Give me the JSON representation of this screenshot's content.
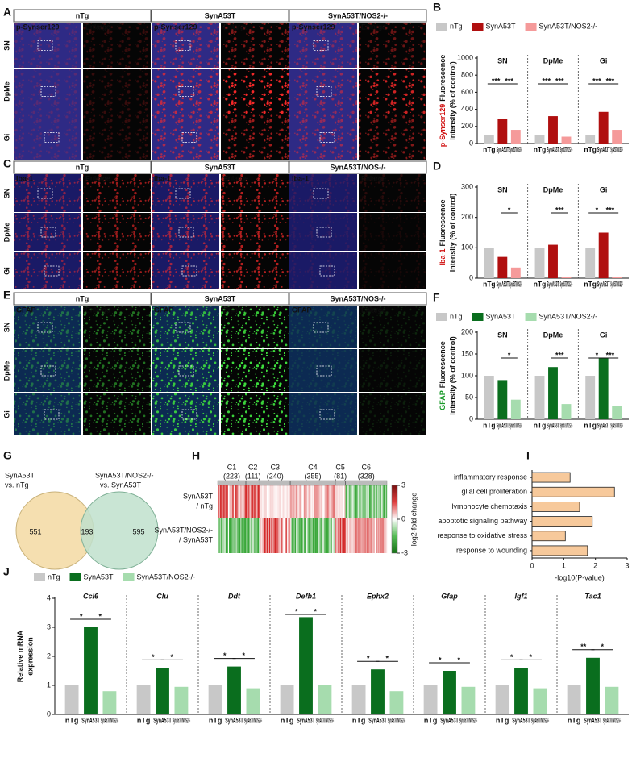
{
  "image_panels": [
    {
      "letter": "A",
      "columns": [
        "nTg",
        "SynA53T",
        "SynA53T/NOS2-/-"
      ],
      "stain": "p-Synser129",
      "stain_color": "#ff2a2a",
      "enlarge": "Enlarge",
      "rows": [
        "SN",
        "DpMe",
        "Gi"
      ]
    },
    {
      "letter": "C",
      "columns": [
        "nTg",
        "SynA53T",
        "SynA53T/NOS-/-"
      ],
      "stain": "Iba-1",
      "stain_color": "#ff2a2a",
      "enlarge": "Enlarge",
      "rows": [
        "SN",
        "DpMe",
        "Gi"
      ]
    },
    {
      "letter": "E",
      "columns": [
        "nTg",
        "SynA53T",
        "SynA53T/NOS-/-"
      ],
      "stain": "GFAP",
      "stain_color": "#3ddc3d",
      "enlarge": "Enlarge",
      "rows": [
        "SN",
        "DpMe",
        "Gi"
      ]
    }
  ],
  "chart_data": [
    {
      "type": "bar",
      "letter": "B",
      "categories": [
        "SN",
        "DpMe",
        "Gi"
      ],
      "series": [
        {
          "name": "nTg",
          "color": "#c8c8c8",
          "values": [
            100,
            100,
            100
          ]
        },
        {
          "name": "SynA53T",
          "color": "#b00f0f",
          "values": [
            290,
            320,
            370
          ]
        },
        {
          "name": "SynA53T/NOS2-/-",
          "color": "#f59a9a",
          "values": [
            160,
            80,
            160
          ]
        }
      ],
      "ylim": [
        0,
        1000
      ],
      "yticks": [
        0,
        200,
        400,
        600,
        800,
        1000
      ],
      "legend": "top",
      "ylabel_stain": "p-Synser129",
      "ylabel_stain_color": "#d01010",
      "ylabel": [
        "Fluorescence",
        "intensity (% of control)"
      ],
      "significance": [
        [
          "***",
          "***"
        ],
        [
          "***",
          "***"
        ],
        [
          "***",
          "***"
        ]
      ]
    },
    {
      "type": "bar",
      "letter": "D",
      "categories": [
        "SN",
        "DpMe",
        "Gi"
      ],
      "series": [
        {
          "name": "nTg",
          "color": "#c8c8c8",
          "values": [
            100,
            100,
            100
          ]
        },
        {
          "name": "SynA53T",
          "color": "#b00f0f",
          "values": [
            70,
            110,
            150
          ]
        },
        {
          "name": "SynA53T/NOS2-/-",
          "color": "#f59a9a",
          "values": [
            35,
            5,
            5
          ]
        }
      ],
      "ylim": [
        0,
        300
      ],
      "yticks": [
        0,
        100,
        200,
        300
      ],
      "ylabel_stain": "Iba-1",
      "ylabel_stain_color": "#d01010",
      "ylabel": [
        "Fluorescence",
        "intensity (% of control)"
      ],
      "significance": [
        [
          null,
          "*"
        ],
        [
          null,
          "***"
        ],
        [
          "*",
          "***"
        ]
      ]
    },
    {
      "type": "bar",
      "letter": "F",
      "categories": [
        "SN",
        "DpMe",
        "Gi"
      ],
      "series": [
        {
          "name": "nTg",
          "color": "#c8c8c8",
          "values": [
            100,
            100,
            100
          ]
        },
        {
          "name": "SynA53T",
          "color": "#0a6e1e",
          "values": [
            90,
            120,
            140
          ]
        },
        {
          "name": "SynA53T/NOS2-/-",
          "color": "#a6dcae",
          "values": [
            45,
            35,
            30
          ]
        }
      ],
      "ylim": [
        0,
        200
      ],
      "yticks": [
        0,
        50,
        100,
        150,
        200
      ],
      "legend": "top",
      "ylabel_stain": "GFAP",
      "ylabel_stain_color": "#1a9a2a",
      "ylabel": [
        "Fluorescence",
        "intensity (% of control)"
      ],
      "significance": [
        [
          null,
          "*"
        ],
        [
          null,
          "***"
        ],
        [
          "*",
          "***"
        ]
      ]
    },
    {
      "type": "barh",
      "letter": "I",
      "categories": [
        "inflammatory response",
        "glial cell proliferation",
        "lymphocyte chemotaxis",
        "apoptotic signaling pathway",
        "response to oxidative stress",
        "response to wounding"
      ],
      "values": [
        1.2,
        2.6,
        1.5,
        1.9,
        1.05,
        1.75
      ],
      "color": "#f7c99b",
      "xlim": [
        0,
        3
      ],
      "xticks": [
        0,
        1,
        2,
        3
      ],
      "xlabel": "-log10(P-value)"
    },
    {
      "type": "bar",
      "letter": "J",
      "categories": [
        "Ccl6",
        "Clu",
        "Ddt",
        "Defb1",
        "Ephx2",
        "Gfap",
        "Igf1",
        "Tac1"
      ],
      "series": [
        {
          "name": "nTg",
          "color": "#c8c8c8",
          "values": [
            1,
            1,
            1,
            1,
            1,
            1,
            1,
            1
          ]
        },
        {
          "name": "SynA53T",
          "color": "#0a6e1e",
          "values": [
            3.0,
            1.6,
            1.65,
            3.35,
            1.55,
            1.5,
            1.6,
            1.95
          ]
        },
        {
          "name": "SynA53T/NOS2-/-",
          "color": "#a6dcae",
          "values": [
            0.8,
            0.95,
            0.9,
            1.0,
            0.8,
            0.95,
            0.9,
            0.95
          ]
        }
      ],
      "ylim": [
        0,
        4
      ],
      "yticks": [
        0,
        1,
        2,
        3,
        4
      ],
      "legend": "top",
      "ylabel": [
        "Relative mRNA",
        "expression"
      ],
      "significance": [
        [
          "*",
          "*"
        ],
        [
          "*",
          "*"
        ],
        [
          "*",
          "*"
        ],
        [
          "*",
          "*"
        ],
        [
          "*",
          "*"
        ],
        [
          "*",
          "*"
        ],
        [
          "*",
          "*"
        ],
        [
          "**",
          "*"
        ]
      ]
    }
  ],
  "venn": {
    "letter": "G",
    "left_label": [
      "SynA53T",
      "vs. nTg"
    ],
    "right_label": [
      "SynA53T/NOS2-/-",
      "vs. SynA53T"
    ],
    "left_only": 551,
    "both": 193,
    "right_only": 595
  },
  "heatmap": {
    "letter": "H",
    "clusters": [
      {
        "name": "C1",
        "count": {
          "value": 223,
          "label": "(223)"
        }
      },
      {
        "name": "C2",
        "count": {
          "value": 111,
          "label": "(111)"
        }
      },
      {
        "name": "C3",
        "count": {
          "value": 240,
          "label": "(240)"
        }
      },
      {
        "name": "C4",
        "count": {
          "value": 355,
          "label": "(355)"
        }
      },
      {
        "name": "C5",
        "count": {
          "value": 81,
          "label": "(81)"
        }
      },
      {
        "name": "C6",
        "count": {
          "value": 328,
          "label": "(328)"
        }
      }
    ],
    "rows": [
      [
        "SynA53T",
        "/ nTg"
      ],
      [
        "SynA53T/NOS2-/-",
        "/ SynA53T"
      ]
    ],
    "colorbar_ticks": [
      3,
      0,
      -3
    ],
    "colorbar_label": "log2-fold change"
  }
}
